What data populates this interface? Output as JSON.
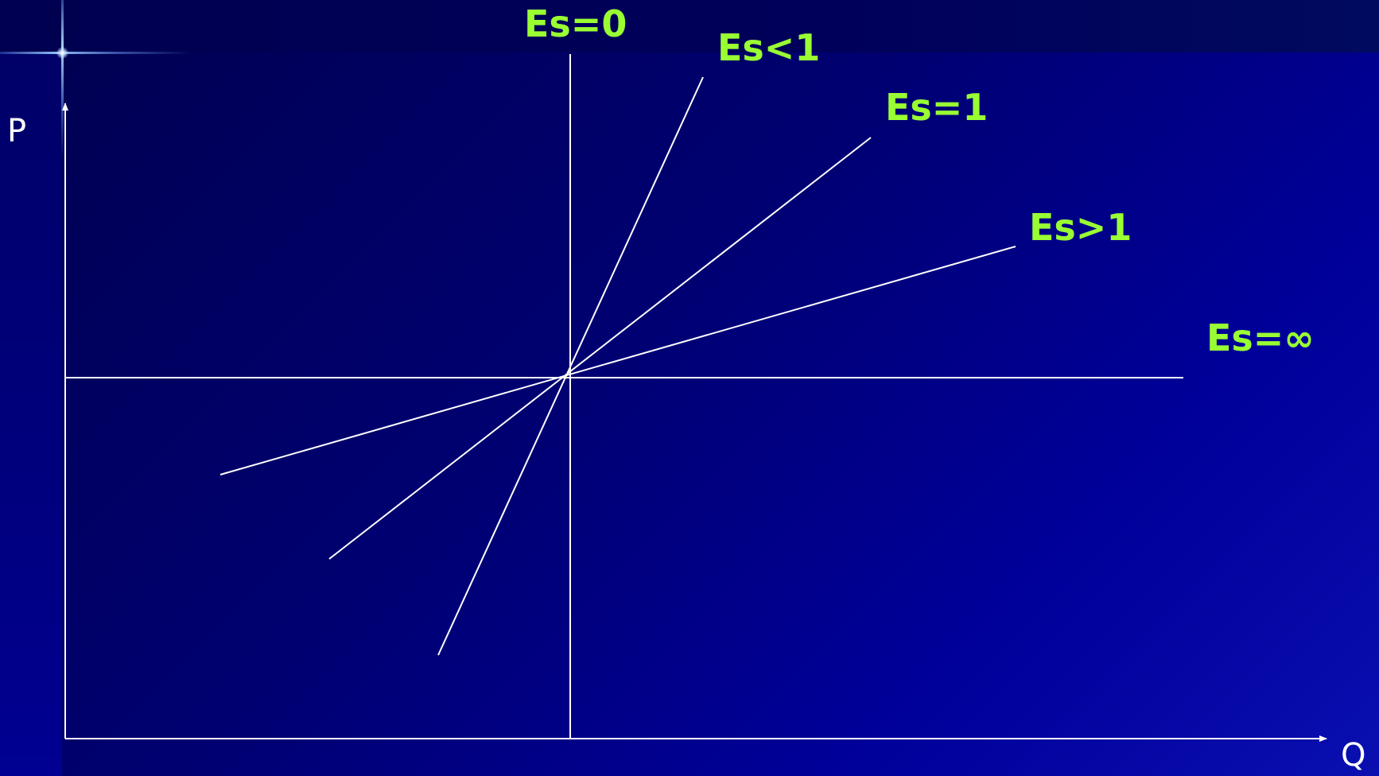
{
  "axes": {
    "y_label": "P",
    "x_label": "Q"
  },
  "curves": {
    "es_zero": "Es=0",
    "es_less_one": "Es<1",
    "es_one": "Es=1",
    "es_greater_one": "Es>1",
    "es_infinity": "Es=∞"
  },
  "colors": {
    "label_green": "#99ff33",
    "line_white": "#ffffff",
    "background_blue": "#000080"
  }
}
